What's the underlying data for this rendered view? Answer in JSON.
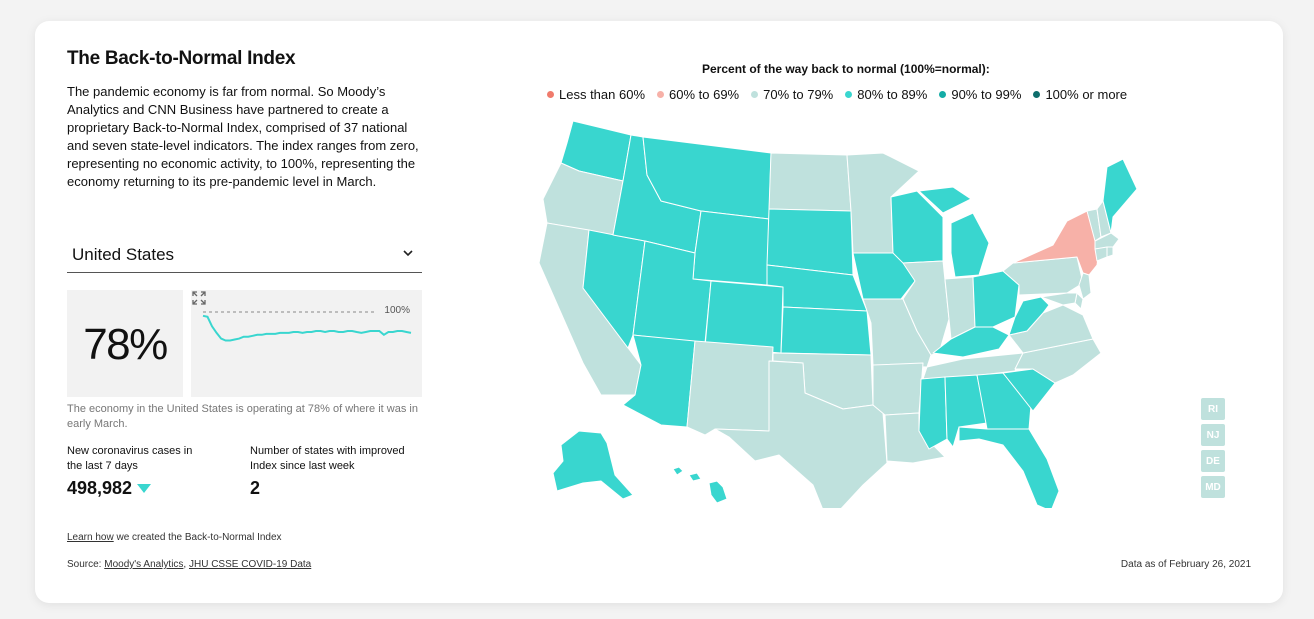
{
  "header": {
    "title": "The Back-to-Normal Index",
    "description": "The pandemic economy is far from normal. So Moody’s Analytics and CNN Business have partnered to create a proprietary Back-to-Normal Index, comprised of 37 national and seven state-level indicators. The index ranges from zero, representing no economic activity, to 100%, representing the economy returning to its pre-pandemic level in March."
  },
  "selector": {
    "selected": "United States"
  },
  "index": {
    "value": "78%",
    "spark_reference_label": "100%",
    "spark_series": [
      96,
      95,
      85,
      78,
      72,
      70,
      70,
      71,
      72,
      74,
      74,
      75,
      76,
      76,
      77,
      77,
      77,
      78,
      78,
      78,
      79,
      79,
      78,
      79,
      79,
      80,
      80,
      79,
      80,
      80,
      79,
      79,
      80,
      80,
      79,
      78,
      79,
      80,
      80,
      80,
      76,
      79,
      79,
      80,
      80,
      79,
      78
    ],
    "caption": "The economy in the United States is operating at 78% of where it was in early March."
  },
  "kpis": [
    {
      "label": "New coronavirus cases in the last 7 days",
      "value": "498,982",
      "trend": "down"
    },
    {
      "label": "Number of states with improved Index since last week",
      "value": "2"
    }
  ],
  "footer": {
    "learn_link": "Learn how",
    "learn_text": " we created the Back-to-Normal Index",
    "source_prefix": "Source: ",
    "source_1": "Moody's Analytics",
    "source_sep": ", ",
    "source_2": "JHU CSSE COVID-19 Data",
    "as_of": "Data as of February 26, 2021"
  },
  "legend": {
    "title": "Percent of the way back to normal (100%=normal):",
    "items": [
      {
        "label": "Less than 60%",
        "color": "#f07b6c"
      },
      {
        "label": "60% to 69%",
        "color": "#f7b1a8"
      },
      {
        "label": "70% to 79%",
        "color": "#bfe1dd"
      },
      {
        "label": "80% to 89%",
        "color": "#39d6cf"
      },
      {
        "label": "90% to 99%",
        "color": "#14aca6"
      },
      {
        "label": "100% or more",
        "color": "#0e6e6c"
      }
    ]
  },
  "colors": {
    "band_60_69": "#f7b1a8",
    "band_70_79": "#bfe1dd",
    "band_80_89": "#39d6cf",
    "spark_line": "#39d6cf"
  },
  "small_states": [
    "RI",
    "NJ",
    "DE",
    "MD"
  ],
  "states": {
    "WA": "80-89",
    "OR": "70-79",
    "CA": "70-79",
    "NV": "80-89",
    "ID": "80-89",
    "MT": "80-89",
    "WY": "80-89",
    "UT": "80-89",
    "AZ": "80-89",
    "CO": "80-89",
    "NM": "70-79",
    "ND": "70-79",
    "SD": "80-89",
    "NE": "80-89",
    "KS": "80-89",
    "OK": "70-79",
    "TX": "70-79",
    "MN": "70-79",
    "IA": "80-89",
    "MO": "70-79",
    "AR": "70-79",
    "LA": "70-79",
    "WI": "80-89",
    "IL": "70-79",
    "MI": "80-89",
    "IN": "70-79",
    "OH": "80-89",
    "KY": "80-89",
    "TN": "70-79",
    "MS": "80-89",
    "AL": "80-89",
    "GA": "80-89",
    "FL": "80-89",
    "SC": "80-89",
    "NC": "70-79",
    "VA": "70-79",
    "WV": "80-89",
    "PA": "70-79",
    "NY": "60-69",
    "VT": "70-79",
    "NH": "70-79",
    "ME": "80-89",
    "MA": "70-79",
    "CT": "70-79",
    "NJ": "70-79",
    "DE": "70-79",
    "MD": "70-79",
    "RI": "70-79",
    "AK": "80-89",
    "HI": "80-89"
  }
}
